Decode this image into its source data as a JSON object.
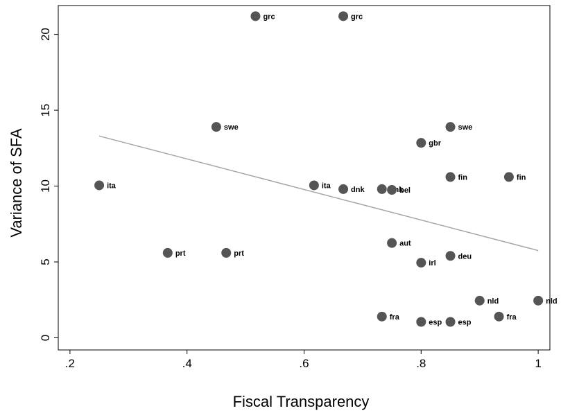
{
  "chart_data": {
    "type": "scatter",
    "xlabel": "Fiscal Transparency",
    "ylabel": "Variance of SFA",
    "xlim": [
      0.18,
      1.02
    ],
    "ylim": [
      -0.8,
      21.9
    ],
    "xticks": [
      {
        "value": 0.2,
        "label": ".2"
      },
      {
        "value": 0.4,
        "label": ".4"
      },
      {
        "value": 0.6,
        "label": ".6"
      },
      {
        "value": 0.8,
        "label": ".8"
      },
      {
        "value": 1.0,
        "label": "1"
      }
    ],
    "yticks": [
      {
        "value": 0,
        "label": "0"
      },
      {
        "value": 5,
        "label": "5"
      },
      {
        "value": 10,
        "label": "10"
      },
      {
        "value": 15,
        "label": "15"
      },
      {
        "value": 20,
        "label": "20"
      }
    ],
    "grid": false,
    "points": [
      {
        "x": 0.517,
        "y": 21.2,
        "label": "grc"
      },
      {
        "x": 0.667,
        "y": 21.2,
        "label": "grc"
      },
      {
        "x": 0.45,
        "y": 13.9,
        "label": "swe"
      },
      {
        "x": 0.85,
        "y": 13.9,
        "label": "swe"
      },
      {
        "x": 0.8,
        "y": 12.85,
        "label": "gbr"
      },
      {
        "x": 0.85,
        "y": 10.6,
        "label": "fin"
      },
      {
        "x": 0.95,
        "y": 10.6,
        "label": "fin"
      },
      {
        "x": 0.25,
        "y": 10.05,
        "label": "ita"
      },
      {
        "x": 0.617,
        "y": 10.05,
        "label": "ita"
      },
      {
        "x": 0.667,
        "y": 9.8,
        "label": "dnk"
      },
      {
        "x": 0.733,
        "y": 9.8,
        "label": "dnk"
      },
      {
        "x": 0.75,
        "y": 9.75,
        "label": "bel"
      },
      {
        "x": 0.367,
        "y": 5.6,
        "label": "prt"
      },
      {
        "x": 0.467,
        "y": 5.6,
        "label": "prt"
      },
      {
        "x": 0.75,
        "y": 6.25,
        "label": "aut"
      },
      {
        "x": 0.85,
        "y": 5.4,
        "label": "deu"
      },
      {
        "x": 0.8,
        "y": 4.95,
        "label": "irl"
      },
      {
        "x": 0.9,
        "y": 2.45,
        "label": "nld"
      },
      {
        "x": 1.0,
        "y": 2.45,
        "label": "nld"
      },
      {
        "x": 0.733,
        "y": 1.4,
        "label": "fra"
      },
      {
        "x": 0.933,
        "y": 1.4,
        "label": "fra"
      },
      {
        "x": 0.8,
        "y": 1.05,
        "label": "esp"
      },
      {
        "x": 0.85,
        "y": 1.05,
        "label": "esp"
      }
    ],
    "fit_line": {
      "x": [
        0.25,
        1.0
      ],
      "y": [
        13.3,
        5.75
      ]
    },
    "colors": {
      "marker": "#555555",
      "fit_line": "#a6a6a6",
      "axis": "#000000"
    }
  }
}
